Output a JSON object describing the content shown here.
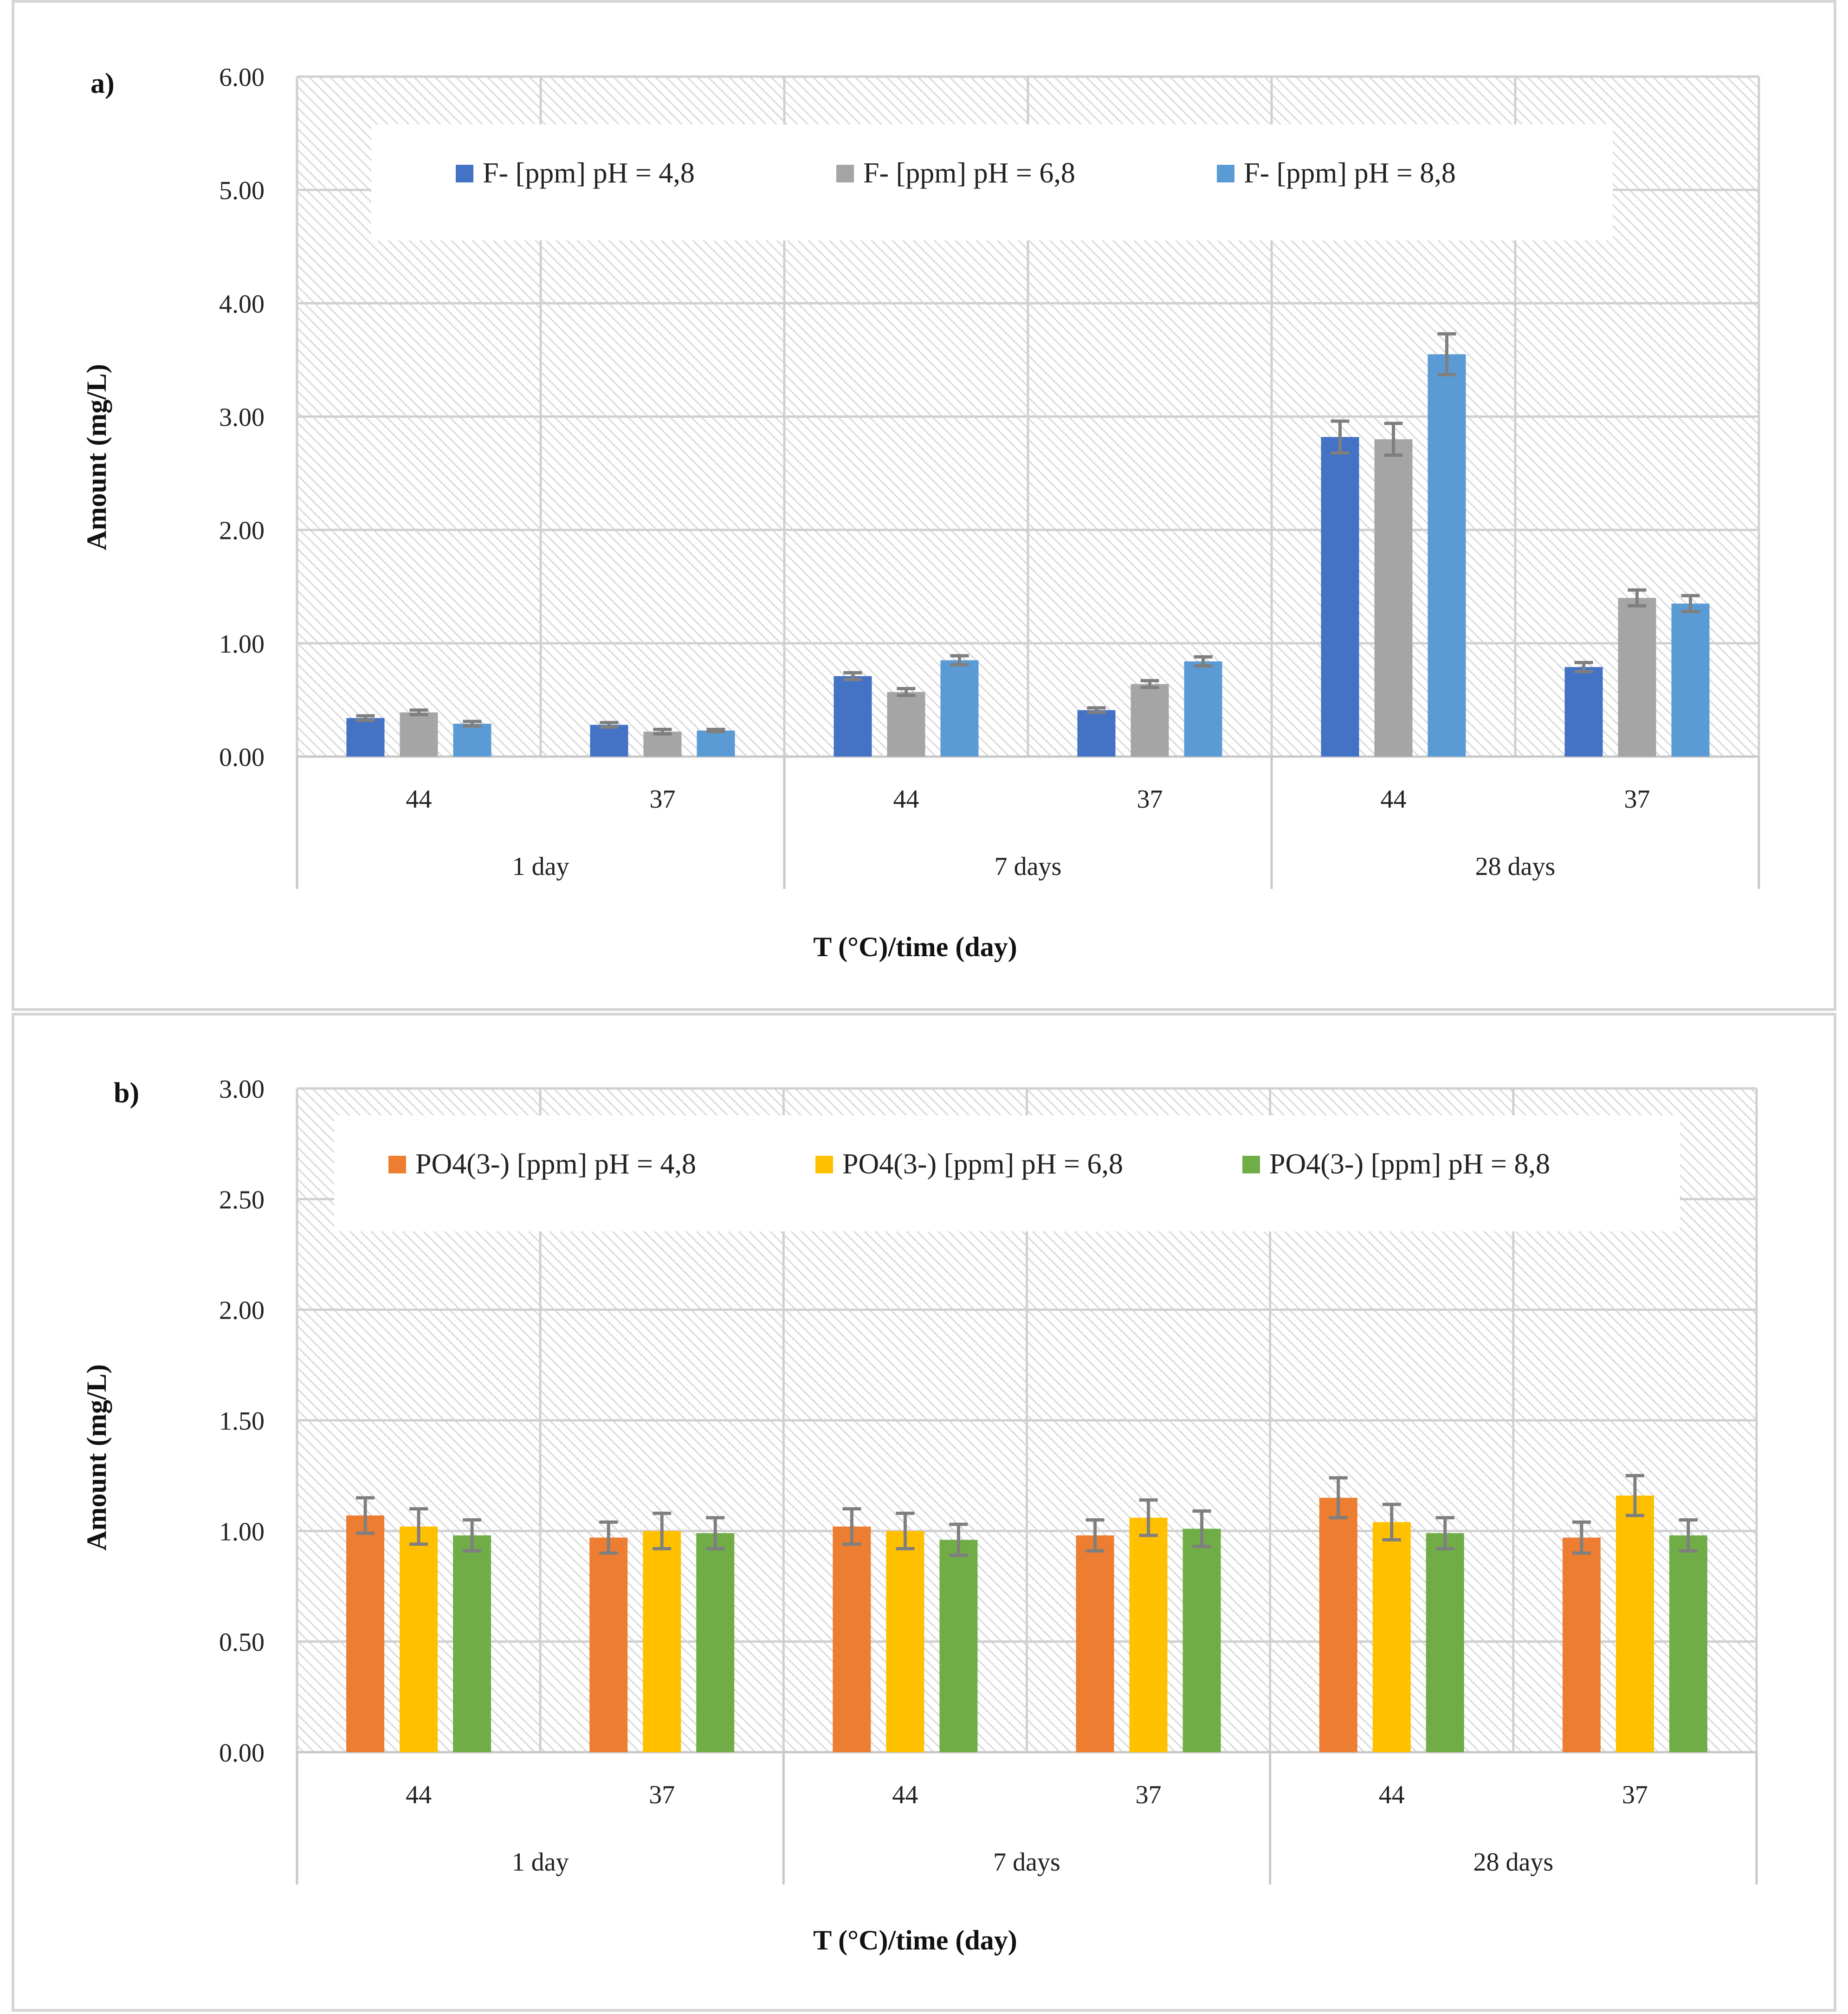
{
  "chart_data": [
    {
      "type": "bar",
      "panel_label": "a)",
      "categories": [
        "44",
        "37",
        "44",
        "37",
        "44",
        "37"
      ],
      "groups": [
        "1 day",
        "7 days",
        "28 days"
      ],
      "series": [
        {
          "name": "F- [ppm] pH = 4,8",
          "color": "#4472c4",
          "values": [
            0.34,
            0.28,
            0.71,
            0.41,
            2.82,
            0.79
          ],
          "errors": [
            0.02,
            0.02,
            0.03,
            0.02,
            0.14,
            0.04
          ]
        },
        {
          "name": "F- [ppm] pH = 6,8",
          "color": "#a5a5a5",
          "values": [
            0.39,
            0.22,
            0.57,
            0.64,
            2.8,
            1.4
          ],
          "errors": [
            0.02,
            0.02,
            0.03,
            0.03,
            0.14,
            0.07
          ]
        },
        {
          "name": "F- [ppm] pH = 8,8",
          "color": "#5b9bd5",
          "values": [
            0.29,
            0.23,
            0.85,
            0.84,
            3.55,
            1.35
          ],
          "errors": [
            0.02,
            0.01,
            0.04,
            0.04,
            0.18,
            0.07
          ]
        }
      ],
      "ylim": [
        0,
        6
      ],
      "yticks": [
        "0.00",
        "1.00",
        "2.00",
        "3.00",
        "4.00",
        "5.00",
        "6.00"
      ],
      "ylabel": "Amount (mg/L)",
      "xlabel": "T (°C)/time (day)",
      "legend_position": "top",
      "grid": true
    },
    {
      "type": "bar",
      "panel_label": "b)",
      "categories": [
        "44",
        "37",
        "44",
        "37",
        "44",
        "37"
      ],
      "groups": [
        "1 day",
        "7 days",
        "28 days"
      ],
      "series": [
        {
          "name": "PO4(3-) [ppm] pH = 4,8",
          "color": "#ed7d31",
          "values": [
            1.07,
            0.97,
            1.02,
            0.98,
            1.15,
            0.97
          ],
          "errors": [
            0.08,
            0.07,
            0.08,
            0.07,
            0.09,
            0.07
          ]
        },
        {
          "name": "PO4(3-) [ppm] pH = 6,8",
          "color": "#ffc000",
          "values": [
            1.02,
            1.0,
            1.0,
            1.06,
            1.04,
            1.16
          ],
          "errors": [
            0.08,
            0.08,
            0.08,
            0.08,
            0.08,
            0.09
          ]
        },
        {
          "name": "PO4(3-) [ppm] pH = 8,8",
          "color": "#70ad47",
          "values": [
            0.98,
            0.99,
            0.96,
            1.01,
            0.99,
            0.98
          ],
          "errors": [
            0.07,
            0.07,
            0.07,
            0.08,
            0.07,
            0.07
          ]
        }
      ],
      "ylim": [
        0,
        3
      ],
      "yticks": [
        "0.00",
        "0.50",
        "1.00",
        "1.50",
        "2.00",
        "2.50",
        "3.00"
      ],
      "ylabel": "Amount (mg/L)",
      "xlabel": "T (°C)/time (day)",
      "legend_position": "top",
      "grid": true
    }
  ]
}
